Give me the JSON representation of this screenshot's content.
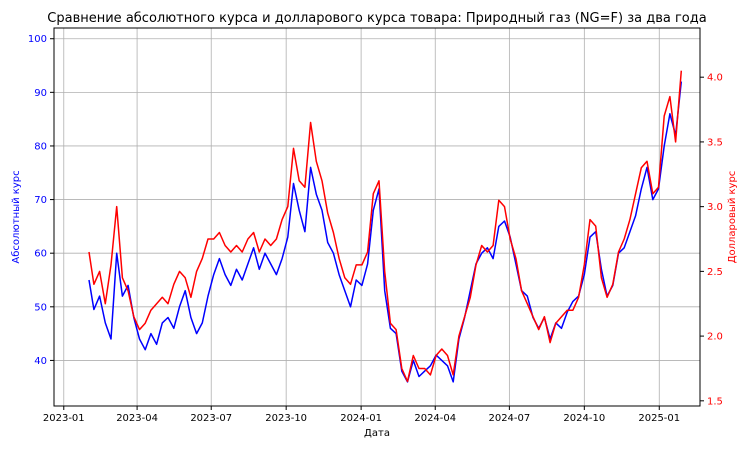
{
  "chart_data": {
    "type": "line",
    "title": "Сравнение абсолютного курса и долларового курса товара: Природный газ (NG=F) за два года",
    "xlabel": "Дата",
    "ylabel_left": "Абсолютный курс",
    "ylabel_right": "Долларовый курс",
    "xlim": [
      "2022-12-20",
      "2025-02-20"
    ],
    "ylim_left": [
      31.5,
      102
    ],
    "ylim_right": [
      1.46,
      4.38
    ],
    "x_ticks": [
      {
        "date": "2023-01-01",
        "label": "2023-01"
      },
      {
        "date": "2023-04-01",
        "label": "2023-04"
      },
      {
        "date": "2023-07-01",
        "label": "2023-07"
      },
      {
        "date": "2023-10-01",
        "label": "2023-10"
      },
      {
        "date": "2024-01-01",
        "label": "2024-01"
      },
      {
        "date": "2024-04-01",
        "label": "2024-04"
      },
      {
        "date": "2024-07-01",
        "label": "2024-07"
      },
      {
        "date": "2024-10-01",
        "label": "2024-10"
      },
      {
        "date": "2025-01-01",
        "label": "2025-01"
      }
    ],
    "y_ticks_left": [
      40,
      50,
      60,
      70,
      80,
      90,
      100
    ],
    "y_ticks_right": [
      1.5,
      2.0,
      2.5,
      3.0,
      3.5,
      4.0
    ],
    "grid": true,
    "colors": {
      "left_series": "#0000ff",
      "right_series": "#ff0000",
      "grid": "#b0b0b0"
    },
    "series": [
      {
        "axis": "left",
        "color": "#0000ff",
        "x": [
          "2023-02-01",
          "2023-02-07",
          "2023-02-14",
          "2023-02-21",
          "2023-02-28",
          "2023-03-07",
          "2023-03-14",
          "2023-03-21",
          "2023-03-28",
          "2023-04-04",
          "2023-04-11",
          "2023-04-18",
          "2023-04-25",
          "2023-05-02",
          "2023-05-09",
          "2023-05-16",
          "2023-05-23",
          "2023-05-30",
          "2023-06-06",
          "2023-06-13",
          "2023-06-20",
          "2023-06-27",
          "2023-07-04",
          "2023-07-11",
          "2023-07-18",
          "2023-07-25",
          "2023-08-01",
          "2023-08-08",
          "2023-08-15",
          "2023-08-22",
          "2023-08-29",
          "2023-09-05",
          "2023-09-12",
          "2023-09-19",
          "2023-09-26",
          "2023-10-03",
          "2023-10-10",
          "2023-10-17",
          "2023-10-24",
          "2023-10-31",
          "2023-11-07",
          "2023-11-14",
          "2023-11-21",
          "2023-11-28",
          "2023-12-05",
          "2023-12-12",
          "2023-12-19",
          "2023-12-26",
          "2024-01-02",
          "2024-01-09",
          "2024-01-16",
          "2024-01-23",
          "2024-01-30",
          "2024-02-06",
          "2024-02-13",
          "2024-02-20",
          "2024-02-27",
          "2024-03-05",
          "2024-03-12",
          "2024-03-19",
          "2024-03-26",
          "2024-04-02",
          "2024-04-09",
          "2024-04-16",
          "2024-04-23",
          "2024-04-30",
          "2024-05-07",
          "2024-05-14",
          "2024-05-21",
          "2024-05-28",
          "2024-06-04",
          "2024-06-11",
          "2024-06-18",
          "2024-06-25",
          "2024-07-02",
          "2024-07-09",
          "2024-07-16",
          "2024-07-23",
          "2024-07-30",
          "2024-08-06",
          "2024-08-13",
          "2024-08-20",
          "2024-08-27",
          "2024-09-03",
          "2024-09-10",
          "2024-09-17",
          "2024-09-24",
          "2024-10-01",
          "2024-10-08",
          "2024-10-15",
          "2024-10-22",
          "2024-10-29",
          "2024-11-05",
          "2024-11-12",
          "2024-11-19",
          "2024-11-26",
          "2024-12-03",
          "2024-12-10",
          "2024-12-17",
          "2024-12-24",
          "2024-12-31",
          "2025-01-07",
          "2025-01-14",
          "2025-01-21",
          "2025-01-28"
        ],
        "values": [
          55,
          49.5,
          52,
          47,
          44,
          60,
          52,
          54,
          48,
          44,
          42,
          45,
          43,
          47,
          48,
          46,
          50,
          53,
          48,
          45,
          47,
          52,
          56,
          59,
          56,
          54,
          57,
          55,
          58,
          61,
          57,
          60,
          58,
          56,
          59,
          63,
          73,
          68,
          64,
          76,
          71,
          68,
          62,
          60,
          56,
          53,
          50,
          55,
          54,
          58,
          68,
          72,
          53,
          46,
          45,
          38,
          36,
          40,
          37,
          38,
          39,
          41,
          40,
          39,
          36,
          44,
          48,
          53,
          58,
          60,
          61,
          59,
          65,
          66,
          63,
          58,
          53,
          52,
          48,
          46,
          48,
          44,
          47,
          46,
          49,
          51,
          52,
          56,
          63,
          64,
          57,
          52,
          54,
          60,
          61,
          64,
          67,
          72,
          76,
          70,
          72,
          80,
          86,
          82,
          92
        ]
      },
      {
        "axis": "right",
        "color": "#ff0000",
        "x": [
          "2023-02-01",
          "2023-02-07",
          "2023-02-14",
          "2023-02-21",
          "2023-02-28",
          "2023-03-07",
          "2023-03-14",
          "2023-03-21",
          "2023-03-28",
          "2023-04-04",
          "2023-04-11",
          "2023-04-18",
          "2023-04-25",
          "2023-05-02",
          "2023-05-09",
          "2023-05-16",
          "2023-05-23",
          "2023-05-30",
          "2023-06-06",
          "2023-06-13",
          "2023-06-20",
          "2023-06-27",
          "2023-07-04",
          "2023-07-11",
          "2023-07-18",
          "2023-07-25",
          "2023-08-01",
          "2023-08-08",
          "2023-08-15",
          "2023-08-22",
          "2023-08-29",
          "2023-09-05",
          "2023-09-12",
          "2023-09-19",
          "2023-09-26",
          "2023-10-03",
          "2023-10-10",
          "2023-10-17",
          "2023-10-24",
          "2023-10-31",
          "2023-11-07",
          "2023-11-14",
          "2023-11-21",
          "2023-11-28",
          "2023-12-05",
          "2023-12-12",
          "2023-12-19",
          "2023-12-26",
          "2024-01-02",
          "2024-01-09",
          "2024-01-16",
          "2024-01-23",
          "2024-01-30",
          "2024-02-06",
          "2024-02-13",
          "2024-02-20",
          "2024-02-27",
          "2024-03-05",
          "2024-03-12",
          "2024-03-19",
          "2024-03-26",
          "2024-04-02",
          "2024-04-09",
          "2024-04-16",
          "2024-04-23",
          "2024-04-30",
          "2024-05-07",
          "2024-05-14",
          "2024-05-21",
          "2024-05-28",
          "2024-06-04",
          "2024-06-11",
          "2024-06-18",
          "2024-06-25",
          "2024-07-02",
          "2024-07-09",
          "2024-07-16",
          "2024-07-23",
          "2024-07-30",
          "2024-08-06",
          "2024-08-13",
          "2024-08-20",
          "2024-08-27",
          "2024-09-03",
          "2024-09-10",
          "2024-09-17",
          "2024-09-24",
          "2024-10-01",
          "2024-10-08",
          "2024-10-15",
          "2024-10-22",
          "2024-10-29",
          "2024-11-05",
          "2024-11-12",
          "2024-11-19",
          "2024-11-26",
          "2024-12-03",
          "2024-12-10",
          "2024-12-17",
          "2024-12-24",
          "2024-12-31",
          "2025-01-07",
          "2025-01-14",
          "2025-01-21",
          "2025-01-28"
        ],
        "values": [
          2.65,
          2.4,
          2.5,
          2.25,
          2.55,
          3.0,
          2.45,
          2.35,
          2.15,
          2.05,
          2.1,
          2.2,
          2.25,
          2.3,
          2.25,
          2.4,
          2.5,
          2.45,
          2.3,
          2.5,
          2.6,
          2.75,
          2.75,
          2.8,
          2.7,
          2.65,
          2.7,
          2.65,
          2.75,
          2.8,
          2.65,
          2.75,
          2.7,
          2.75,
          2.9,
          3.0,
          3.45,
          3.2,
          3.15,
          3.65,
          3.35,
          3.2,
          2.95,
          2.8,
          2.6,
          2.45,
          2.4,
          2.55,
          2.55,
          2.65,
          3.1,
          3.2,
          2.5,
          2.1,
          2.05,
          1.75,
          1.65,
          1.85,
          1.75,
          1.75,
          1.7,
          1.85,
          1.9,
          1.85,
          1.7,
          2.0,
          2.15,
          2.3,
          2.55,
          2.7,
          2.65,
          2.7,
          3.05,
          3.0,
          2.75,
          2.6,
          2.35,
          2.25,
          2.15,
          2.05,
          2.15,
          1.95,
          2.1,
          2.15,
          2.2,
          2.2,
          2.3,
          2.55,
          2.9,
          2.85,
          2.45,
          2.3,
          2.4,
          2.65,
          2.75,
          2.9,
          3.1,
          3.3,
          3.35,
          3.1,
          3.15,
          3.7,
          3.85,
          3.5,
          4.05
        ]
      }
    ]
  }
}
